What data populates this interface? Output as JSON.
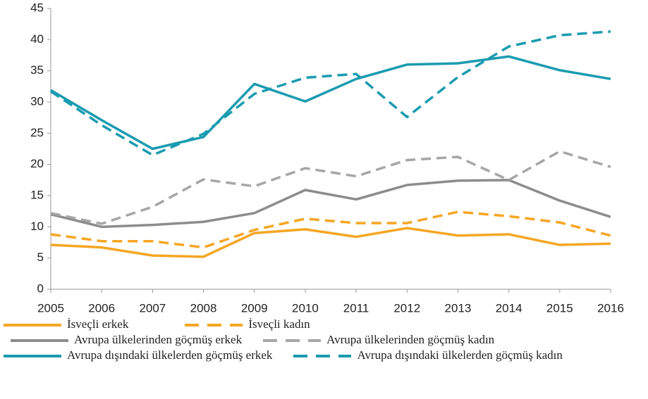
{
  "chart_data": {
    "type": "line",
    "x": [
      2005,
      2006,
      2007,
      2008,
      2009,
      2010,
      2011,
      2012,
      2013,
      2014,
      2015,
      2016
    ],
    "series": [
      {
        "name": "İsveçli erkek",
        "color": "#f5a623",
        "dashed": false,
        "values": [
          7.1,
          6.7,
          5.4,
          5.2,
          9.0,
          9.6,
          8.4,
          9.8,
          8.6,
          8.8,
          7.1,
          7.3
        ]
      },
      {
        "name": "İsveçli kadın",
        "color": "#f5a623",
        "dashed": true,
        "values": [
          8.8,
          7.7,
          7.7,
          6.7,
          9.5,
          11.3,
          10.6,
          10.6,
          12.4,
          11.7,
          10.7,
          8.6
        ]
      },
      {
        "name": "Avrupa ülkelerinden göçmüş erkek",
        "color": "#8c8c8c",
        "dashed": false,
        "values": [
          12.0,
          10.0,
          10.3,
          10.8,
          12.2,
          15.9,
          14.4,
          16.7,
          17.4,
          17.5,
          14.2,
          11.6
        ]
      },
      {
        "name": "Avrupa ülkelerinden göçmüş kadın",
        "color": "#a6a6a6",
        "dashed": true,
        "values": [
          12.2,
          10.5,
          13.2,
          17.6,
          16.5,
          19.4,
          18.1,
          20.7,
          21.2,
          17.5,
          22.1,
          19.6
        ]
      },
      {
        "name": "Avrupa dışındaki ülkelerden göçmüş erkek",
        "color": "#1a9bb0",
        "dashed": false,
        "values": [
          31.9,
          27.1,
          22.5,
          24.4,
          32.9,
          30.1,
          33.7,
          36.0,
          36.2,
          37.3,
          35.1,
          33.7
        ]
      },
      {
        "name": "Avrupa dışındaki ülkelerden göçmüş kadın",
        "color": "#1a9bb0",
        "dashed": true,
        "values": [
          31.7,
          26.3,
          21.5,
          24.9,
          31.3,
          33.9,
          34.5,
          27.6,
          34.0,
          38.9,
          40.7,
          41.3
        ]
      }
    ],
    "xlim": [
      2005,
      2016
    ],
    "xticks": [
      2005,
      2006,
      2007,
      2008,
      2009,
      2010,
      2011,
      2012,
      2013,
      2014,
      2015,
      2016
    ],
    "ylim": [
      0,
      45
    ],
    "yticks": [
      0,
      5,
      10,
      15,
      20,
      25,
      30,
      35,
      40,
      45
    ],
    "grid": false
  }
}
